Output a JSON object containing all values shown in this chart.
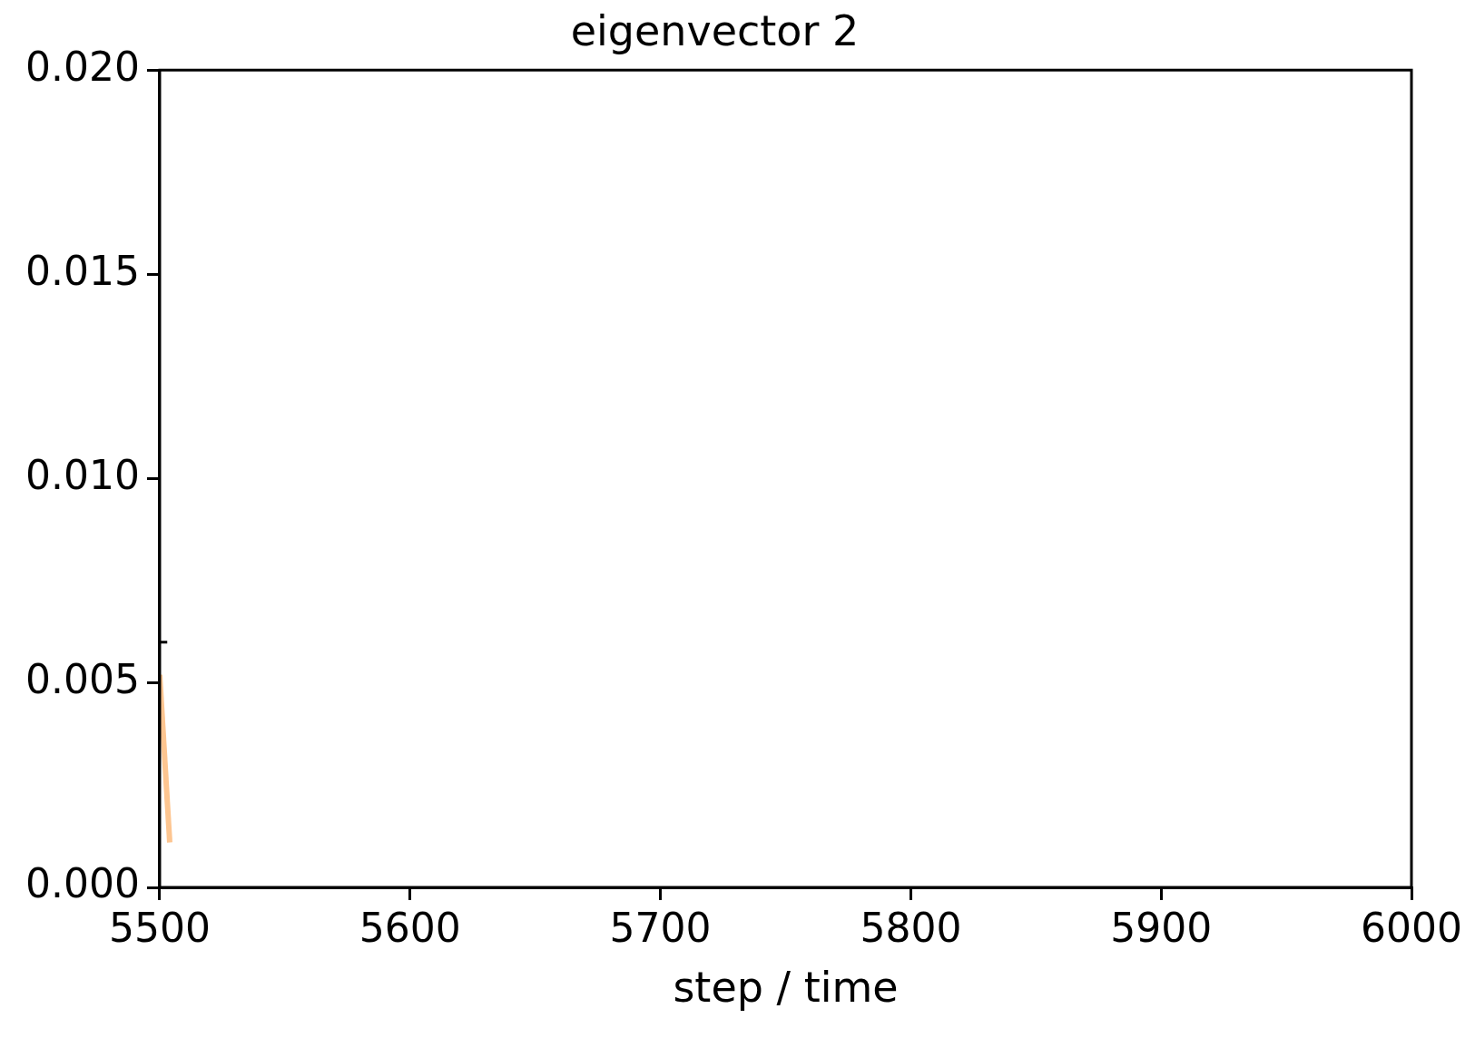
{
  "chart_data": {
    "type": "line",
    "title": "eigenvector 2",
    "xlabel": "step / time",
    "series": [
      {
        "color": "#000000",
        "x": [
          5500,
          5503
        ],
        "values": [
          0.006,
          0.006
        ]
      },
      {
        "color": "#fdc590",
        "x": [
          5500,
          5504
        ],
        "values": [
          0.0052,
          0.0011
        ]
      }
    ],
    "xlim": [
      5500,
      6000
    ],
    "xticks": [
      5500,
      5600,
      5700,
      5800,
      5900,
      6000
    ],
    "ylim": [
      0,
      0.02
    ],
    "yticks": [
      {
        "value": 0,
        "label": "0.000"
      },
      {
        "value": 0.005,
        "label": "0.005"
      },
      {
        "value": 0.01,
        "label": "0.010"
      },
      {
        "value": 0.015,
        "label": "0.015"
      },
      {
        "value": 0.02,
        "label": "0.020"
      }
    ],
    "grid": false,
    "legend": false,
    "marker": "none",
    "line_style": "solid"
  }
}
